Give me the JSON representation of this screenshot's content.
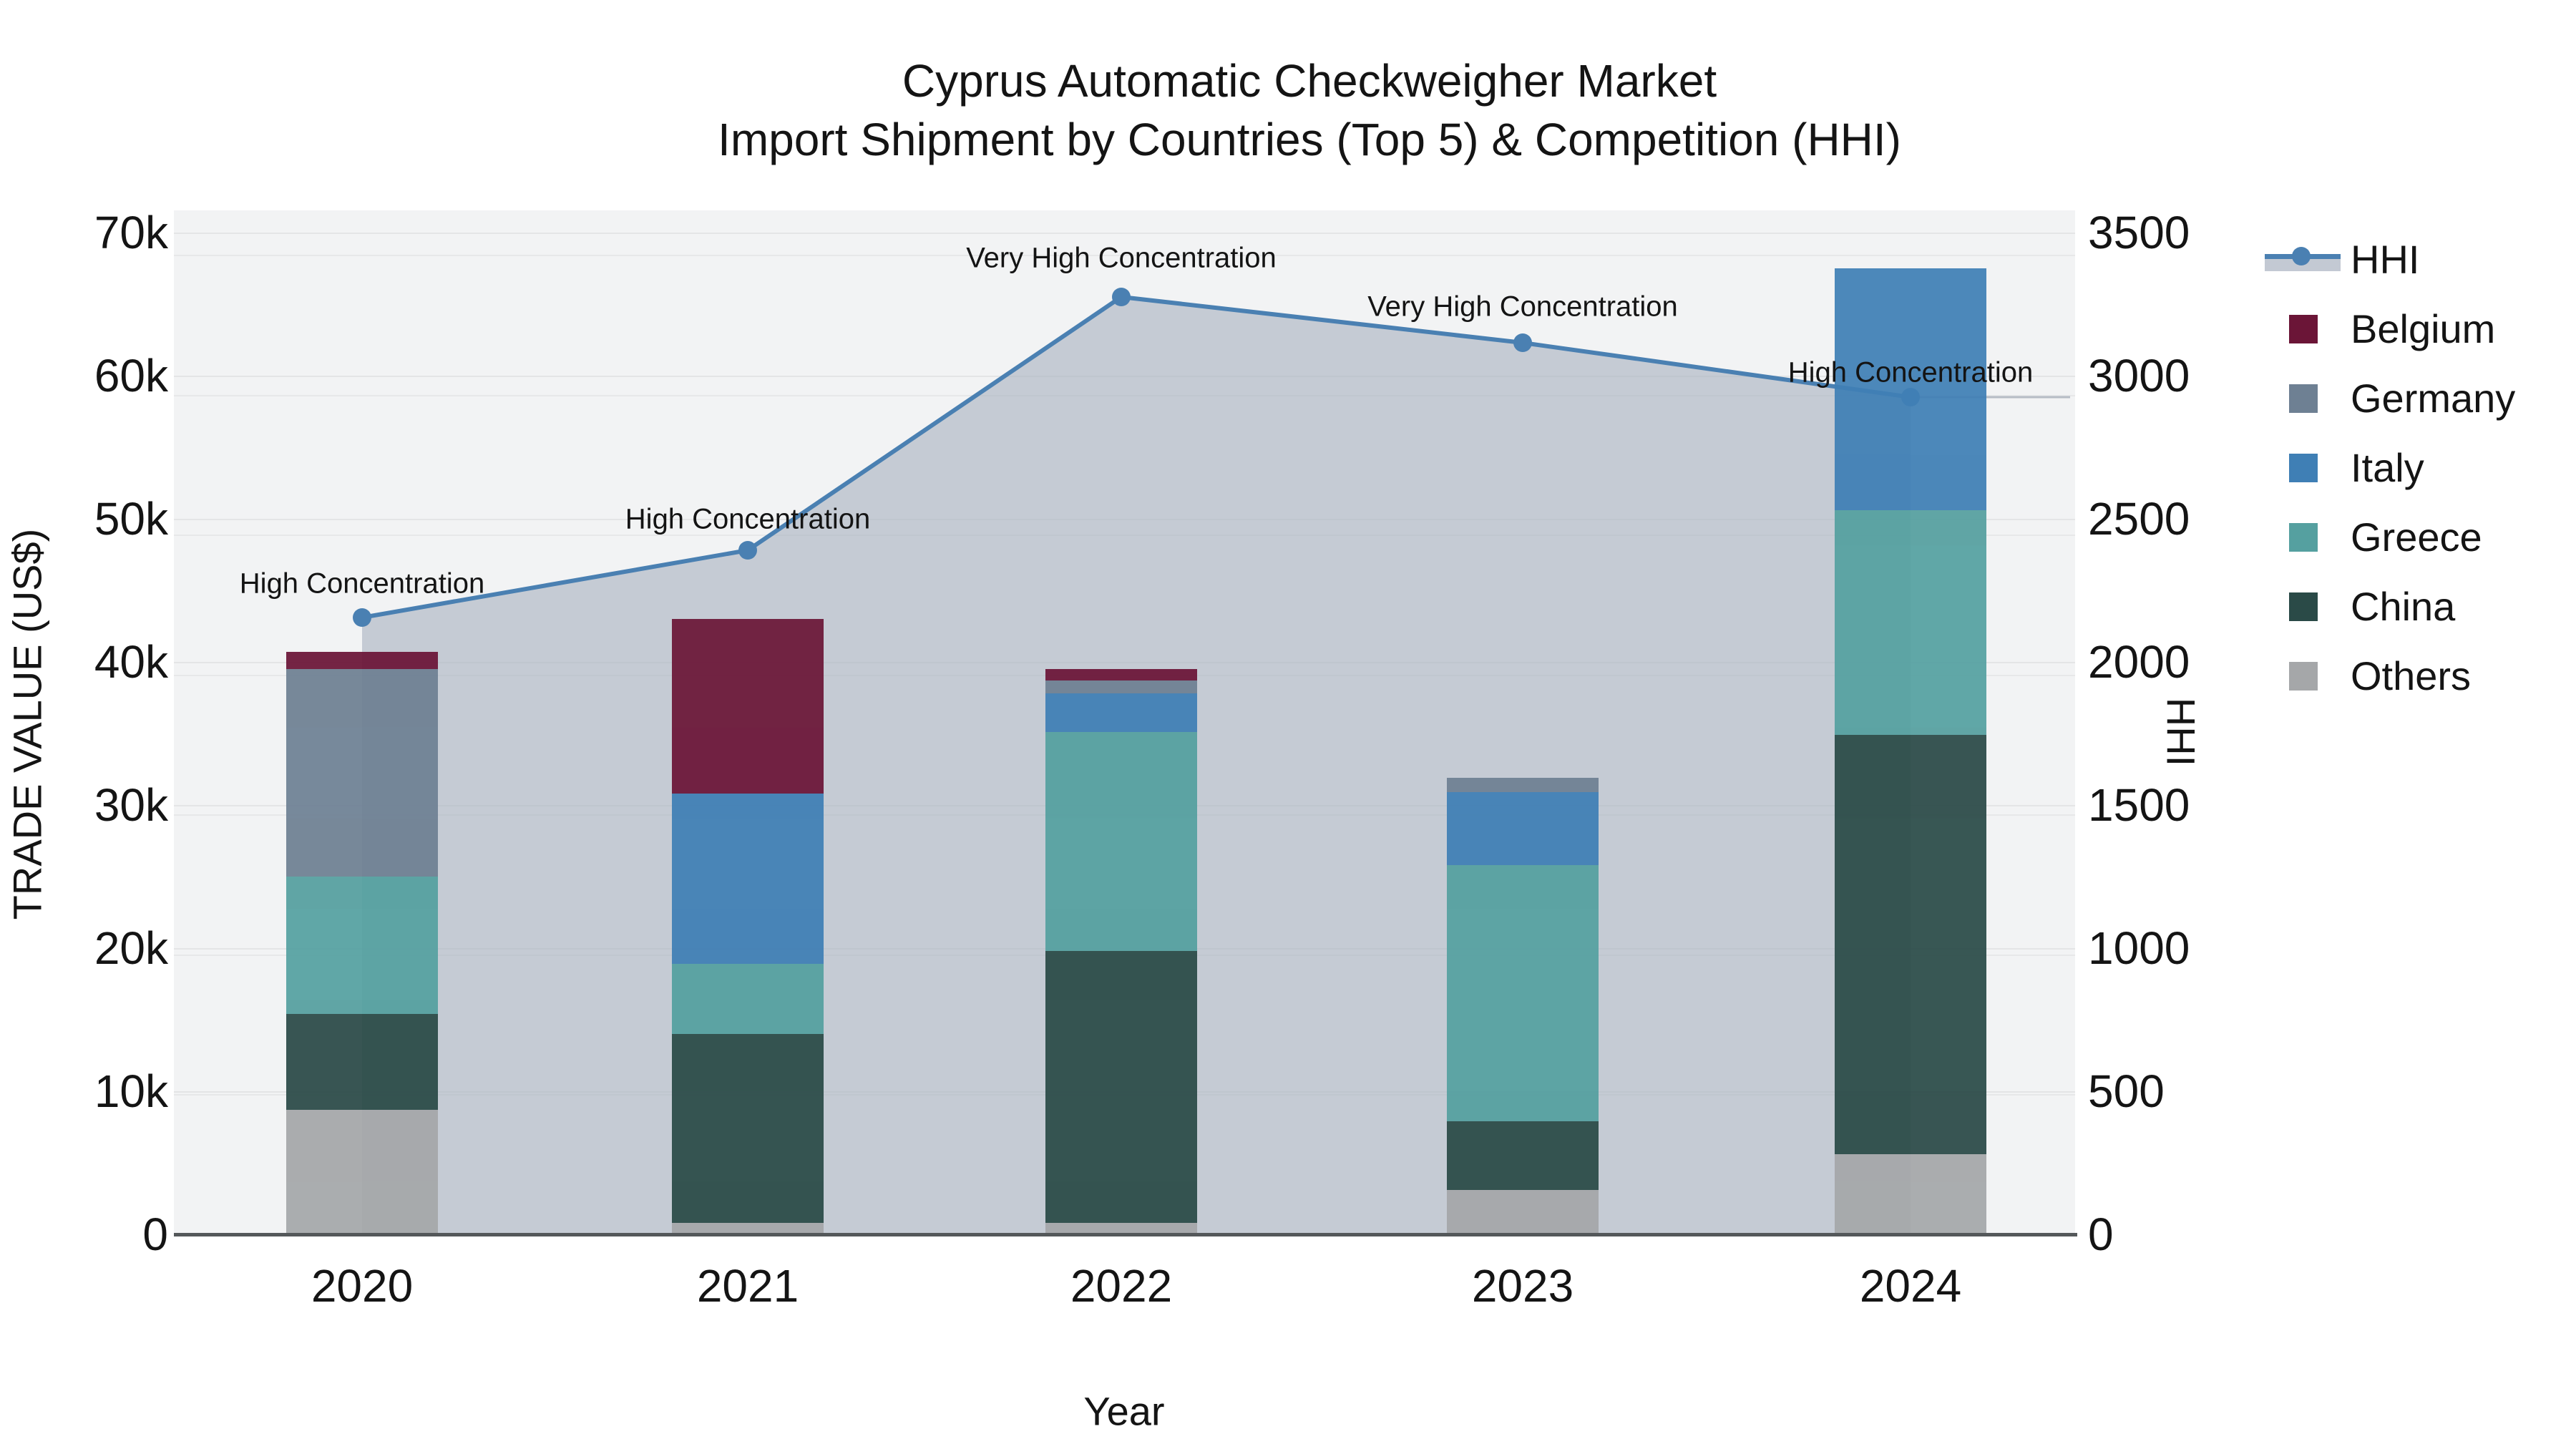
{
  "chart_data": {
    "type": "bar+line",
    "title_line1": "Cyprus Automatic Checkweigher Market",
    "title_line2": "Import Shipment by Countries (Top 5) & Competition (HHI)",
    "xlabel": "Year",
    "ylabel_left": "TRADE VALUE (US$)",
    "ylabel_right": "HHI",
    "categories": [
      "2020",
      "2021",
      "2022",
      "2023",
      "2024"
    ],
    "stack_order_bottom_to_top": [
      "Others",
      "China",
      "Greece",
      "Italy",
      "Germany",
      "Belgium"
    ],
    "series": [
      {
        "name": "Belgium",
        "color": "#6b1537",
        "values": [
          1200,
          12200,
          800,
          0,
          0
        ]
      },
      {
        "name": "Germany",
        "color": "#6e8093",
        "values": [
          14500,
          0,
          900,
          1000,
          0
        ]
      },
      {
        "name": "Italy",
        "color": "#3f7fb5",
        "values": [
          0,
          11900,
          2700,
          5100,
          16900
        ]
      },
      {
        "name": "Greece",
        "color": "#55a0a0",
        "values": [
          9600,
          4900,
          15300,
          17900,
          15700
        ]
      },
      {
        "name": "China",
        "color": "#2a4a47",
        "values": [
          6700,
          13200,
          19000,
          4800,
          29300
        ]
      },
      {
        "name": "Others",
        "color": "#a5a7a9",
        "values": [
          8700,
          800,
          800,
          3100,
          5600
        ]
      }
    ],
    "bar_totals": [
      40700,
      43000,
      39500,
      31900,
      67500
    ],
    "hhi": {
      "name": "HHI",
      "values": [
        2155,
        2390,
        3275,
        3115,
        2925
      ],
      "line_color": "#4a80b2",
      "fill_color": "rgba(166,176,190,0.60)"
    },
    "annotations": [
      {
        "category": "2020",
        "text": "High Concentration"
      },
      {
        "category": "2021",
        "text": "High Concentration"
      },
      {
        "category": "2022",
        "text": "Very High Concentration"
      },
      {
        "category": "2023",
        "text": "Very High Concentration"
      },
      {
        "category": "2024",
        "text": "High Concentration"
      }
    ],
    "y_left_ticks": [
      "0",
      "10k",
      "20k",
      "30k",
      "40k",
      "50k",
      "60k",
      "70k"
    ],
    "y_right_ticks": [
      "0",
      "500",
      "1000",
      "1500",
      "2000",
      "2500",
      "3000",
      "3500"
    ],
    "ylim_left": [
      0,
      70000
    ],
    "ylim_right": [
      0,
      3500
    ],
    "grid": true,
    "legend_position": "right",
    "legend": [
      "HHI",
      "Belgium",
      "Germany",
      "Italy",
      "Greece",
      "China",
      "Others"
    ]
  }
}
